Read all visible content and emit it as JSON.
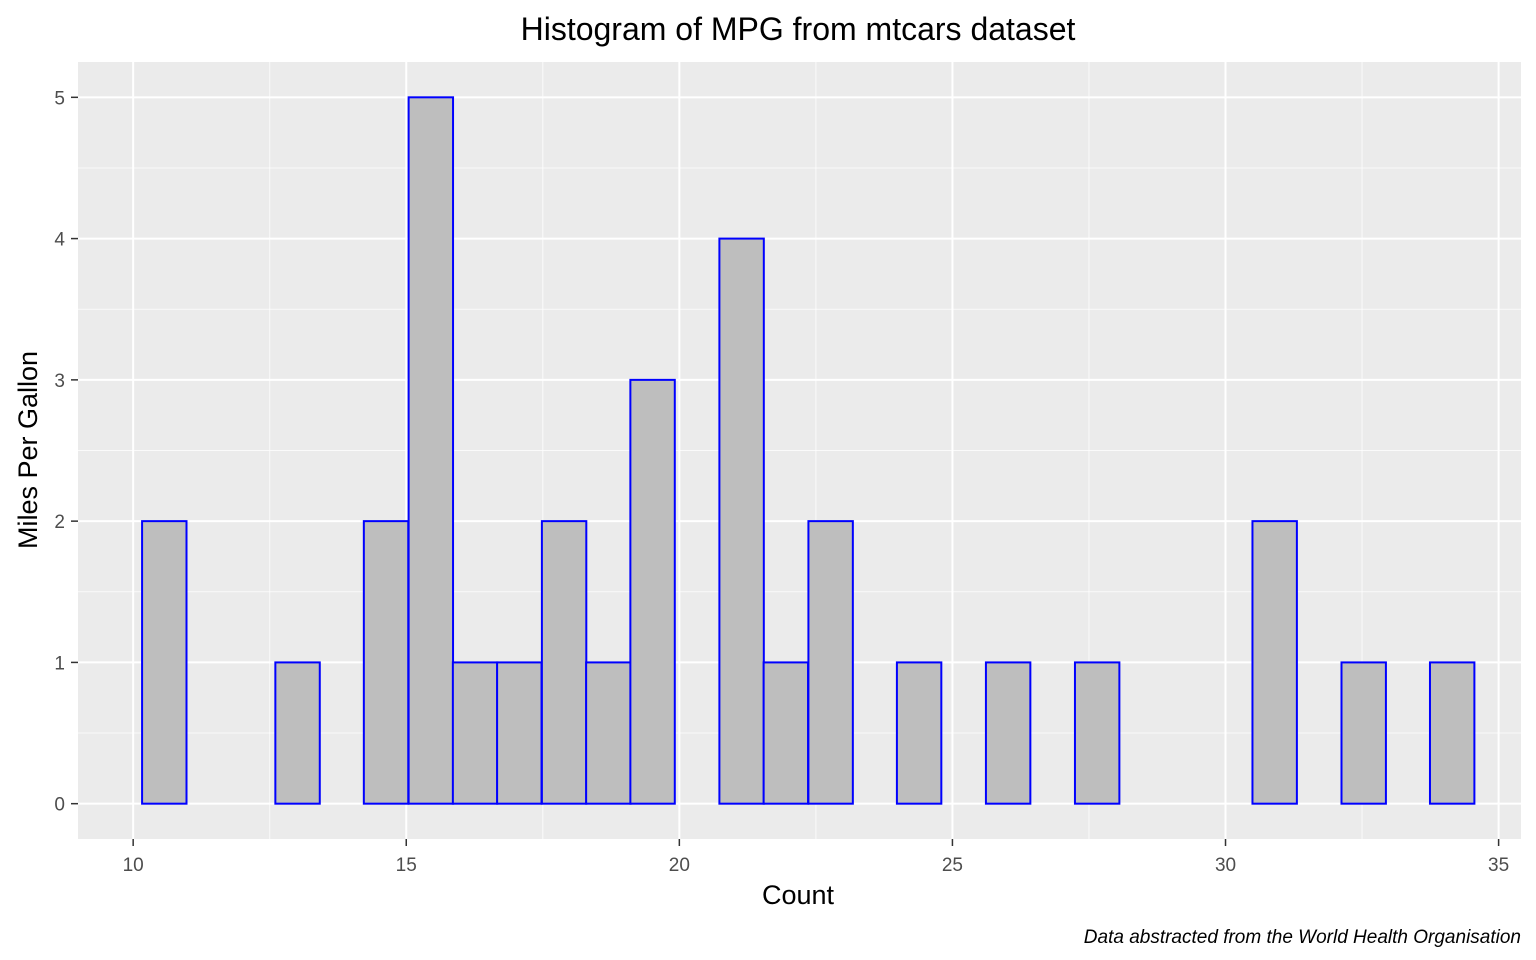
{
  "chart_data": {
    "type": "bar",
    "title": "Histogram of MPG from mtcars dataset",
    "xlabel": "Count",
    "ylabel": "Miles Per Gallon",
    "caption": "Data abstracted from the World Health Organisation",
    "xlim": [
      8.99,
      35.41
    ],
    "ylim": [
      -0.25,
      5.25
    ],
    "x_ticks": [
      10,
      15,
      20,
      25,
      30,
      35
    ],
    "y_ticks": [
      0,
      1,
      2,
      3,
      4,
      5
    ],
    "grid": true,
    "bin_width": 0.8133,
    "bar_fill": "#bebebe",
    "bar_outline": "#0000ff",
    "panel_background": "#ebebeb",
    "bins": [
      {
        "x": 10.57,
        "count": 2
      },
      {
        "x": 11.38,
        "count": 0
      },
      {
        "x": 12.19,
        "count": 0
      },
      {
        "x": 13.01,
        "count": 1
      },
      {
        "x": 13.82,
        "count": 0
      },
      {
        "x": 14.63,
        "count": 2
      },
      {
        "x": 15.45,
        "count": 5
      },
      {
        "x": 16.26,
        "count": 1
      },
      {
        "x": 17.07,
        "count": 1
      },
      {
        "x": 17.89,
        "count": 2
      },
      {
        "x": 18.7,
        "count": 1
      },
      {
        "x": 19.51,
        "count": 3
      },
      {
        "x": 20.33,
        "count": 0
      },
      {
        "x": 21.14,
        "count": 4
      },
      {
        "x": 21.95,
        "count": 1
      },
      {
        "x": 22.77,
        "count": 2
      },
      {
        "x": 23.58,
        "count": 0
      },
      {
        "x": 24.39,
        "count": 1
      },
      {
        "x": 25.21,
        "count": 0
      },
      {
        "x": 26.02,
        "count": 1
      },
      {
        "x": 26.83,
        "count": 0
      },
      {
        "x": 27.65,
        "count": 1
      },
      {
        "x": 28.46,
        "count": 0
      },
      {
        "x": 29.27,
        "count": 0
      },
      {
        "x": 30.09,
        "count": 0
      },
      {
        "x": 30.9,
        "count": 2
      },
      {
        "x": 31.71,
        "count": 0
      },
      {
        "x": 32.53,
        "count": 1
      },
      {
        "x": 33.34,
        "count": 0
      },
      {
        "x": 34.15,
        "count": 1
      }
    ]
  }
}
